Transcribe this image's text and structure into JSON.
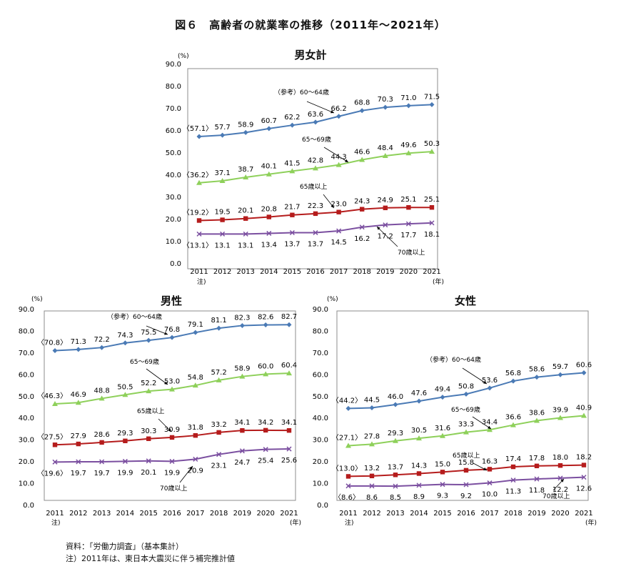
{
  "title": "図６　高齢者の就業率の推移（2011年～2021年）",
  "source": "資料：「労働力調査」（基本集計）",
  "note": "注）2011年は、東日本大震災に伴う補完推計値",
  "colors": {
    "age60_64": "#4a7ab5",
    "age65_69": "#8ed05a",
    "age65plus": "#b51c1c",
    "age70plus": "#7b4fa0",
    "axis": "#000000",
    "border": "#8c8c8c"
  },
  "chart_data": [
    {
      "type": "line",
      "title": "男女計",
      "unit_label": "(%)",
      "year_label": "(年)",
      "note_marker": "注)",
      "x": [
        "2011",
        "2012",
        "2013",
        "2014",
        "2015",
        "2016",
        "2017",
        "2018",
        "2019",
        "2020",
        "2021"
      ],
      "ylim": [
        0,
        90
      ],
      "yticks": [
        "0.0",
        "10.0",
        "20.0",
        "30.0",
        "40.0",
        "50.0",
        "60.0",
        "70.0",
        "80.0",
        "90.0"
      ],
      "series": [
        {
          "name": "（参考）60～64歳",
          "marker": "diamond",
          "color": "#4a7ab5",
          "values": [
            57.1,
            57.7,
            58.9,
            60.7,
            62.2,
            63.6,
            66.2,
            68.8,
            70.3,
            71.0,
            71.5
          ],
          "labels": [
            "〈57.1〉",
            "57.7",
            "58.9",
            "60.7",
            "62.2",
            "63.6",
            "66.2",
            "68.8",
            "70.3",
            "71.0",
            "71.5"
          ]
        },
        {
          "name": "65～69歳",
          "marker": "triangle",
          "color": "#8ed05a",
          "values": [
            36.2,
            37.1,
            38.7,
            40.1,
            41.5,
            42.8,
            44.3,
            46.6,
            48.4,
            49.6,
            50.3
          ],
          "labels": [
            "〈36.2〉",
            "37.1",
            "38.7",
            "40.1",
            "41.5",
            "42.8",
            "44.3",
            "46.6",
            "48.4",
            "49.6",
            "50.3"
          ]
        },
        {
          "name": "65歳以上",
          "marker": "square",
          "color": "#b51c1c",
          "values": [
            19.2,
            19.5,
            20.1,
            20.8,
            21.7,
            22.3,
            23.0,
            24.3,
            24.9,
            25.1,
            25.1
          ],
          "labels": [
            "〈19.2〉",
            "19.5",
            "20.1",
            "20.8",
            "21.7",
            "22.3",
            "23.0",
            "24.3",
            "24.9",
            "25.1",
            "25.1"
          ]
        },
        {
          "name": "70歳以上",
          "marker": "x",
          "color": "#7b4fa0",
          "values": [
            13.1,
            13.1,
            13.1,
            13.4,
            13.7,
            13.7,
            14.5,
            16.2,
            17.2,
            17.7,
            18.1
          ],
          "labels": [
            "〈13.1〉",
            "13.1",
            "13.1",
            "13.4",
            "13.7",
            "13.7",
            "14.5",
            "16.2",
            "17.2",
            "17.7",
            "18.1"
          ]
        }
      ]
    },
    {
      "type": "line",
      "title": "男性",
      "unit_label": "(%)",
      "year_label": "(年)",
      "note_marker": "注)",
      "x": [
        "2011",
        "2012",
        "2013",
        "2014",
        "2015",
        "2016",
        "2017",
        "2018",
        "2019",
        "2020",
        "2021"
      ],
      "ylim": [
        0,
        90
      ],
      "yticks": [
        "0.0",
        "10.0",
        "20.0",
        "30.0",
        "40.0",
        "50.0",
        "60.0",
        "70.0",
        "80.0",
        "90.0"
      ],
      "series": [
        {
          "name": "（参考）60～64歳",
          "marker": "diamond",
          "color": "#4a7ab5",
          "values": [
            70.8,
            71.3,
            72.2,
            74.3,
            75.5,
            76.8,
            79.1,
            81.1,
            82.3,
            82.6,
            82.7
          ],
          "labels": [
            "〈70.8〉",
            "71.3",
            "72.2",
            "74.3",
            "75.5",
            "76.8",
            "79.1",
            "81.1",
            "82.3",
            "82.6",
            "82.7"
          ]
        },
        {
          "name": "65～69歳",
          "marker": "triangle",
          "color": "#8ed05a",
          "values": [
            46.3,
            46.9,
            48.8,
            50.5,
            52.2,
            53.0,
            54.8,
            57.2,
            58.9,
            60.0,
            60.4
          ],
          "labels": [
            "〈46.3〉",
            "46.9",
            "48.8",
            "50.5",
            "52.2",
            "53.0",
            "54.8",
            "57.2",
            "58.9",
            "60.0",
            "60.4"
          ]
        },
        {
          "name": "65歳以上",
          "marker": "square",
          "color": "#b51c1c",
          "values": [
            27.5,
            27.9,
            28.6,
            29.3,
            30.3,
            30.9,
            31.8,
            33.2,
            34.1,
            34.2,
            34.1
          ],
          "labels": [
            "〈27.5〉",
            "27.9",
            "28.6",
            "29.3",
            "30.3",
            "30.9",
            "31.8",
            "33.2",
            "34.1",
            "34.2",
            "34.1"
          ]
        },
        {
          "name": "70歳以上",
          "marker": "x",
          "color": "#7b4fa0",
          "values": [
            19.6,
            19.7,
            19.7,
            19.9,
            20.1,
            19.9,
            20.9,
            23.1,
            24.7,
            25.4,
            25.6
          ],
          "labels": [
            "〈19.6〉",
            "19.7",
            "19.7",
            "19.9",
            "20.1",
            "19.9",
            "20.9",
            "23.1",
            "24.7",
            "25.4",
            "25.6"
          ]
        }
      ]
    },
    {
      "type": "line",
      "title": "女性",
      "unit_label": "(%)",
      "year_label": "(年)",
      "note_marker": "注)",
      "x": [
        "2011",
        "2012",
        "2013",
        "2014",
        "2015",
        "2016",
        "2017",
        "2018",
        "2019",
        "2020",
        "2021"
      ],
      "ylim": [
        0,
        90
      ],
      "yticks": [
        "0.0",
        "10.0",
        "20.0",
        "30.0",
        "40.0",
        "50.0",
        "60.0",
        "70.0",
        "80.0",
        "90.0"
      ],
      "series": [
        {
          "name": "（参考）60～64歳",
          "marker": "diamond",
          "color": "#4a7ab5",
          "values": [
            44.2,
            44.5,
            46.0,
            47.6,
            49.4,
            50.8,
            53.6,
            56.8,
            58.6,
            59.7,
            60.6
          ],
          "labels": [
            "〈44.2〉",
            "44.5",
            "46.0",
            "47.6",
            "49.4",
            "50.8",
            "53.6",
            "56.8",
            "58.6",
            "59.7",
            "60.6"
          ]
        },
        {
          "name": "65～69歳",
          "marker": "triangle",
          "color": "#8ed05a",
          "values": [
            27.1,
            27.8,
            29.3,
            30.5,
            31.6,
            33.3,
            34.4,
            36.6,
            38.6,
            39.9,
            40.9
          ],
          "labels": [
            "〈27.1〉",
            "27.8",
            "29.3",
            "30.5",
            "31.6",
            "33.3",
            "34.4",
            "36.6",
            "38.6",
            "39.9",
            "40.9"
          ]
        },
        {
          "name": "65歳以上",
          "marker": "square",
          "color": "#b51c1c",
          "values": [
            13.0,
            13.2,
            13.7,
            14.3,
            15.0,
            15.8,
            16.3,
            17.4,
            17.8,
            18.0,
            18.2
          ],
          "labels": [
            "〈13.0〉",
            "13.2",
            "13.7",
            "14.3",
            "15.0",
            "15.8",
            "16.3",
            "17.4",
            "17.8",
            "18.0",
            "18.2"
          ]
        },
        {
          "name": "70歳以上",
          "marker": "x",
          "color": "#7b4fa0",
          "values": [
            8.6,
            8.6,
            8.5,
            8.9,
            9.3,
            9.2,
            10.0,
            11.3,
            11.8,
            12.2,
            12.6
          ],
          "labels": [
            "〈8.6〉",
            "8.6",
            "8.5",
            "8.9",
            "9.3",
            "9.2",
            "10.0",
            "11.3",
            "11.8",
            "12.2",
            "12.6"
          ]
        }
      ]
    }
  ]
}
